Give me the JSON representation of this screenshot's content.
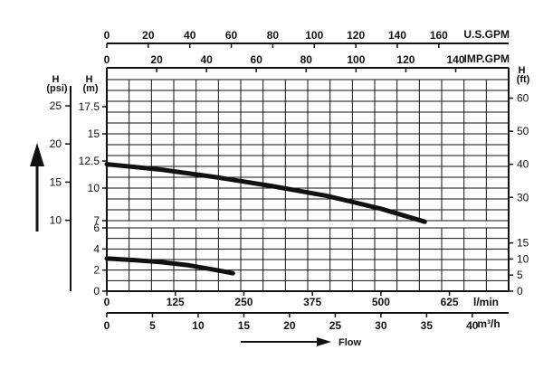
{
  "chart_data": [
    {
      "type": "line",
      "title": "",
      "xlabel": "l/min",
      "xlim": [
        0,
        733
      ],
      "ylim": [
        7,
        20
      ],
      "axes": {
        "top_usgpm": {
          "label": "U.S.GPM",
          "ticks": [
            "0",
            "20",
            "40",
            "60",
            "80",
            "100",
            "120",
            "140",
            "160"
          ],
          "values": [
            0,
            20,
            40,
            60,
            80,
            100,
            120,
            140,
            160
          ]
        },
        "top_impgpm": {
          "label": "IMP.GPM",
          "ticks": [
            "0",
            "20",
            "40",
            "60",
            "80",
            "100",
            "120",
            "140"
          ],
          "values": [
            0,
            20,
            40,
            60,
            80,
            100,
            120,
            140
          ]
        },
        "left_psi": {
          "label": "H\n(psi)",
          "ticks": [
            "10",
            "15",
            "20",
            "25"
          ],
          "values": [
            10,
            15,
            20,
            25
          ]
        },
        "left_m": {
          "label": "H\n(m)",
          "ticks": [
            "7",
            "10",
            "12.5",
            "15",
            "17.5"
          ],
          "values": [
            7,
            10,
            12.5,
            15,
            17.5
          ]
        },
        "right_ft": {
          "label": "H\n(ft)",
          "ticks": [
            "30",
            "40",
            "50",
            "60"
          ],
          "values": [
            30,
            40,
            50,
            60
          ]
        }
      },
      "series": [
        {
          "x": [
            0,
            100,
            200,
            300,
            400,
            500,
            580
          ],
          "y": [
            12.2,
            11.7,
            11.0,
            10.2,
            9.3,
            8.1,
            6.9
          ]
        }
      ]
    },
    {
      "type": "line",
      "title": "",
      "xlim": [
        0,
        733
      ],
      "ylim": [
        0,
        6
      ],
      "axes": {
        "left_m": {
          "ticks": [
            "0",
            "2",
            "4",
            "6"
          ],
          "values": [
            0,
            2,
            4,
            6
          ]
        },
        "right_ft": {
          "ticks": [
            "0",
            "5",
            "10",
            "15"
          ],
          "values": [
            0,
            5,
            10,
            15
          ]
        },
        "bottom_lmin": {
          "label": "l/min",
          "ticks": [
            "0",
            "125",
            "250",
            "375",
            "500",
            "625"
          ],
          "values": [
            0,
            125,
            250,
            375,
            500,
            625
          ]
        },
        "bottom_m3h": {
          "label": "m³/h",
          "ticks": [
            "0",
            "5",
            "10",
            "15",
            "20",
            "25",
            "30",
            "35",
            "40"
          ],
          "values": [
            0,
            5,
            10,
            15,
            20,
            25,
            30,
            35,
            40
          ]
        }
      },
      "series": [
        {
          "x": [
            0,
            50,
            100,
            150,
            200,
            230
          ],
          "y": [
            3.1,
            2.95,
            2.75,
            2.45,
            2.0,
            1.7
          ]
        }
      ]
    }
  ],
  "flow_label": "Flow"
}
